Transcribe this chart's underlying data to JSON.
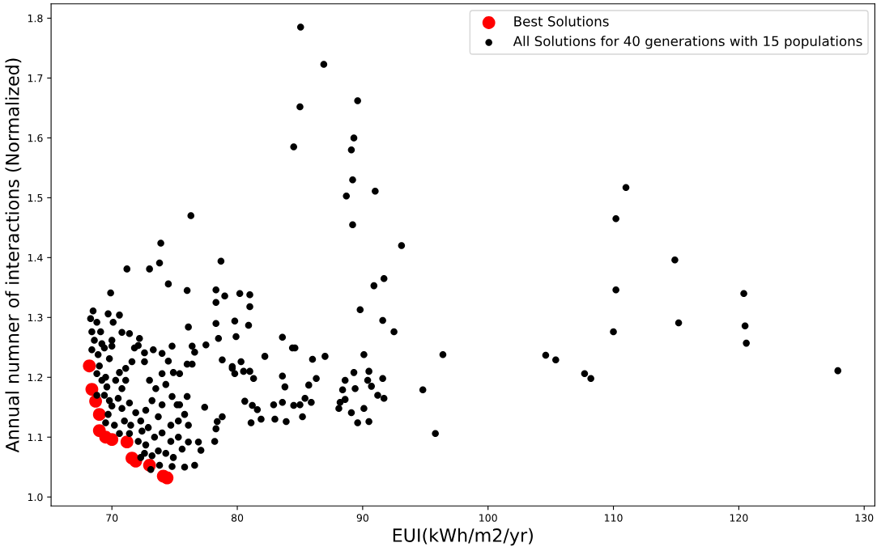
{
  "chart_data": {
    "type": "scatter",
    "xlabel": "EUI(kWh/m2/yr)",
    "ylabel": "Annual numner of interactions (Normalized)",
    "xlim": [
      65.15,
      130.85
    ],
    "ylim": [
      0.985,
      1.824
    ],
    "xticks": [
      70,
      80,
      90,
      100,
      110,
      120,
      130
    ],
    "yticks": [
      {
        "value": 1.0,
        "label": "1.0"
      },
      1.1,
      1.2,
      1.3,
      1.4,
      1.5,
      1.6,
      1.7,
      1.8
    ],
    "legend": "top right",
    "marker": "circle",
    "grid": false,
    "series": [
      {
        "name": "Best Solutions",
        "color": "#ff0000",
        "x": [
          68.2,
          68.4,
          68.7,
          69.0,
          69.0,
          69.5,
          70.0,
          71.2,
          71.6,
          71.9,
          73.0,
          74.1,
          74.4
        ],
        "values": [
          1.219,
          1.18,
          1.16,
          1.138,
          1.111,
          1.1,
          1.096,
          1.092,
          1.065,
          1.06,
          1.053,
          1.035,
          1.032
        ]
      },
      {
        "name": "All Solutions for 40 generations with 15 populations",
        "color": "#000000",
        "x": [
          85.05,
          86.9,
          85.0,
          84.5,
          89.6,
          89.3,
          89.1,
          89.2,
          88.7,
          91.0,
          89.2,
          93.1,
          90.9,
          91.7,
          89.8,
          91.6,
          92.5,
          90.1,
          96.4,
          104.6,
          105.4,
          107.7,
          108.2,
          94.8,
          95.8,
          110.0,
          110.2,
          110.2,
          111.0,
          114.9,
          115.2,
          120.4,
          120.5,
          120.6,
          127.9,
          76.3,
          73.9,
          71.2,
          73.0,
          73.8,
          74.5,
          76.0,
          78.7,
          78.3,
          78.3,
          80.2,
          81.0,
          81.0,
          79.0,
          76.1,
          76.4,
          76.6,
          74.8,
          74.0,
          77.5,
          78.3,
          79.8,
          80.9,
          79.9,
          83.6,
          84.4,
          84.6,
          82.2,
          86.0,
          87.0,
          78.5,
          78.8,
          79.6,
          79.8,
          80.5,
          81.0,
          79.6,
          80.3,
          81.3,
          80.6,
          81.2,
          81.6,
          81.9,
          81.1,
          78.4,
          78.8,
          78.3,
          78.2,
          77.4,
          76.9,
          76.6,
          77.1,
          75.8,
          83.6,
          83.6,
          83.8,
          84.5,
          85.0,
          85.4,
          85.9,
          85.2,
          83.9,
          82.9,
          83.0,
          85.7,
          86.3,
          88.6,
          88.4,
          88.2,
          88.1,
          89.1,
          89.6,
          90.5,
          90.1,
          89.4,
          90.4,
          90.7,
          91.2,
          91.7,
          91.6,
          89.3,
          90.5,
          88.6,
          68.5,
          68.3,
          68.8,
          68.4,
          69.1,
          68.6,
          69.2,
          68.4,
          68.9,
          69.4,
          69.7,
          70.6,
          69.9,
          70.1,
          70.0,
          70.0,
          70.8,
          69.8,
          69.0,
          68.8,
          69.5,
          69.2,
          69.6,
          70.3,
          68.8,
          69.4,
          69.8,
          70.5,
          70.8,
          71.1,
          71.6,
          71.8,
          72.1,
          71.4,
          72.2,
          72.6,
          72.6,
          73.3,
          70.0,
          70.8,
          71.4,
          71.9,
          69.7,
          69.5,
          70.2,
          71.0,
          71.5,
          72.3,
          72.7,
          73.2,
          73.5,
          73.0,
          74.0,
          74.3,
          74.8,
          75.2,
          74.0,
          73.7,
          72.9,
          72.4,
          71.4,
          70.6,
          72.1,
          72.7,
          73.4,
          74.0,
          74.7,
          75.3,
          75.8,
          76.1,
          74.7,
          75.3,
          73.7,
          74.3,
          73.2,
          72.6,
          74.9,
          75.6,
          76.1,
          73.8,
          74.8,
          73.1,
          72.3,
          75.4,
          76.0,
          74.9,
          75.4,
          76.0,
          76.4,
          74.5,
          70.6,
          71.1
        ],
        "values": [
          1.785,
          1.723,
          1.652,
          1.585,
          1.662,
          1.6,
          1.58,
          1.53,
          1.503,
          1.511,
          1.455,
          1.42,
          1.353,
          1.365,
          1.313,
          1.295,
          1.276,
          1.238,
          1.238,
          1.237,
          1.229,
          1.206,
          1.198,
          1.179,
          1.106,
          1.276,
          1.346,
          1.465,
          1.517,
          1.396,
          1.291,
          1.34,
          1.286,
          1.257,
          1.211,
          1.47,
          1.424,
          1.381,
          1.381,
          1.391,
          1.356,
          1.345,
          1.394,
          1.346,
          1.325,
          1.34,
          1.338,
          1.318,
          1.336,
          1.284,
          1.252,
          1.242,
          1.252,
          1.24,
          1.254,
          1.29,
          1.294,
          1.287,
          1.268,
          1.267,
          1.249,
          1.249,
          1.235,
          1.23,
          1.235,
          1.265,
          1.229,
          1.215,
          1.206,
          1.21,
          1.21,
          1.218,
          1.226,
          1.198,
          1.16,
          1.153,
          1.146,
          1.13,
          1.124,
          1.126,
          1.134,
          1.114,
          1.093,
          1.15,
          1.092,
          1.053,
          1.078,
          1.05,
          1.158,
          1.202,
          1.184,
          1.153,
          1.154,
          1.165,
          1.158,
          1.134,
          1.126,
          1.154,
          1.13,
          1.187,
          1.198,
          1.195,
          1.179,
          1.158,
          1.148,
          1.141,
          1.124,
          1.126,
          1.148,
          1.181,
          1.195,
          1.185,
          1.17,
          1.165,
          1.198,
          1.208,
          1.21,
          1.163,
          1.311,
          1.298,
          1.292,
          1.276,
          1.276,
          1.262,
          1.256,
          1.246,
          1.238,
          1.249,
          1.306,
          1.304,
          1.341,
          1.292,
          1.262,
          1.252,
          1.275,
          1.231,
          1.219,
          1.206,
          1.2,
          1.195,
          1.184,
          1.195,
          1.17,
          1.17,
          1.161,
          1.165,
          1.181,
          1.215,
          1.226,
          1.249,
          1.253,
          1.273,
          1.265,
          1.241,
          1.226,
          1.246,
          1.152,
          1.148,
          1.157,
          1.141,
          1.138,
          1.124,
          1.12,
          1.127,
          1.12,
          1.127,
          1.145,
          1.161,
          1.181,
          1.195,
          1.206,
          1.188,
          1.168,
          1.154,
          1.154,
          1.134,
          1.116,
          1.11,
          1.106,
          1.106,
          1.093,
          1.087,
          1.1,
          1.107,
          1.12,
          1.127,
          1.138,
          1.12,
          1.093,
          1.1,
          1.077,
          1.073,
          1.069,
          1.073,
          1.066,
          1.08,
          1.092,
          1.053,
          1.051,
          1.046,
          1.066,
          1.154,
          1.168,
          1.208,
          1.206,
          1.222,
          1.222,
          1.227,
          1.208,
          1.195
        ]
      }
    ]
  }
}
